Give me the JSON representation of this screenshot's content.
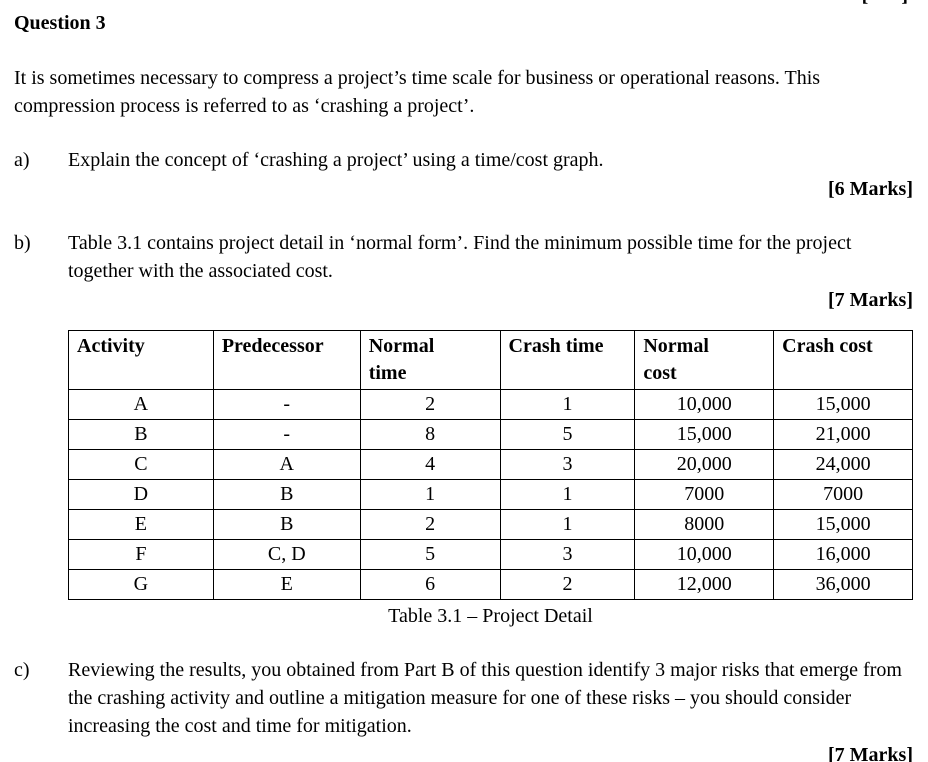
{
  "page": {
    "corner_fragment": "[ ]",
    "title": "Question 3",
    "intro": "It is sometimes necessary to compress a project’s time scale for business or operational reasons. This compression process is referred to as ‘crashing a project’.",
    "parts": [
      {
        "label": "a)",
        "text": "Explain the concept of ‘crashing a project’ using a time/cost graph.",
        "marks": "[6 Marks]"
      },
      {
        "label": "b)",
        "text": "Table 3.1 contains project detail in ‘normal form’. Find the minimum possible time for the project together with the associated cost.",
        "marks": "[7 Marks]"
      },
      {
        "label": "c)",
        "text": "Reviewing the results, you obtained from Part B of this question identify 3 major risks that emerge from the crashing activity and outline a mitigation measure for one of these risks – you should consider increasing the cost and time for mitigation.",
        "marks": "[7 Marks]"
      }
    ],
    "table": {
      "caption": "Table 3.1 – Project Detail",
      "headers": [
        "Activity",
        "Predecessor",
        "Normal\ntime",
        "Crash time",
        "Normal\ncost",
        "Crash cost"
      ],
      "rows": [
        [
          "A",
          "-",
          "2",
          "1",
          "10,000",
          "15,000"
        ],
        [
          "B",
          "-",
          "8",
          "5",
          "15,000",
          "21,000"
        ],
        [
          "C",
          "A",
          "4",
          "3",
          "20,000",
          "24,000"
        ],
        [
          "D",
          "B",
          "1",
          "1",
          "7000",
          "7000"
        ],
        [
          "E",
          "B",
          "2",
          "1",
          "8000",
          "15,000"
        ],
        [
          "F",
          "C, D",
          "5",
          "3",
          "10,000",
          "16,000"
        ],
        [
          "G",
          "E",
          "6",
          "2",
          "12,000",
          "36,000"
        ]
      ]
    }
  }
}
